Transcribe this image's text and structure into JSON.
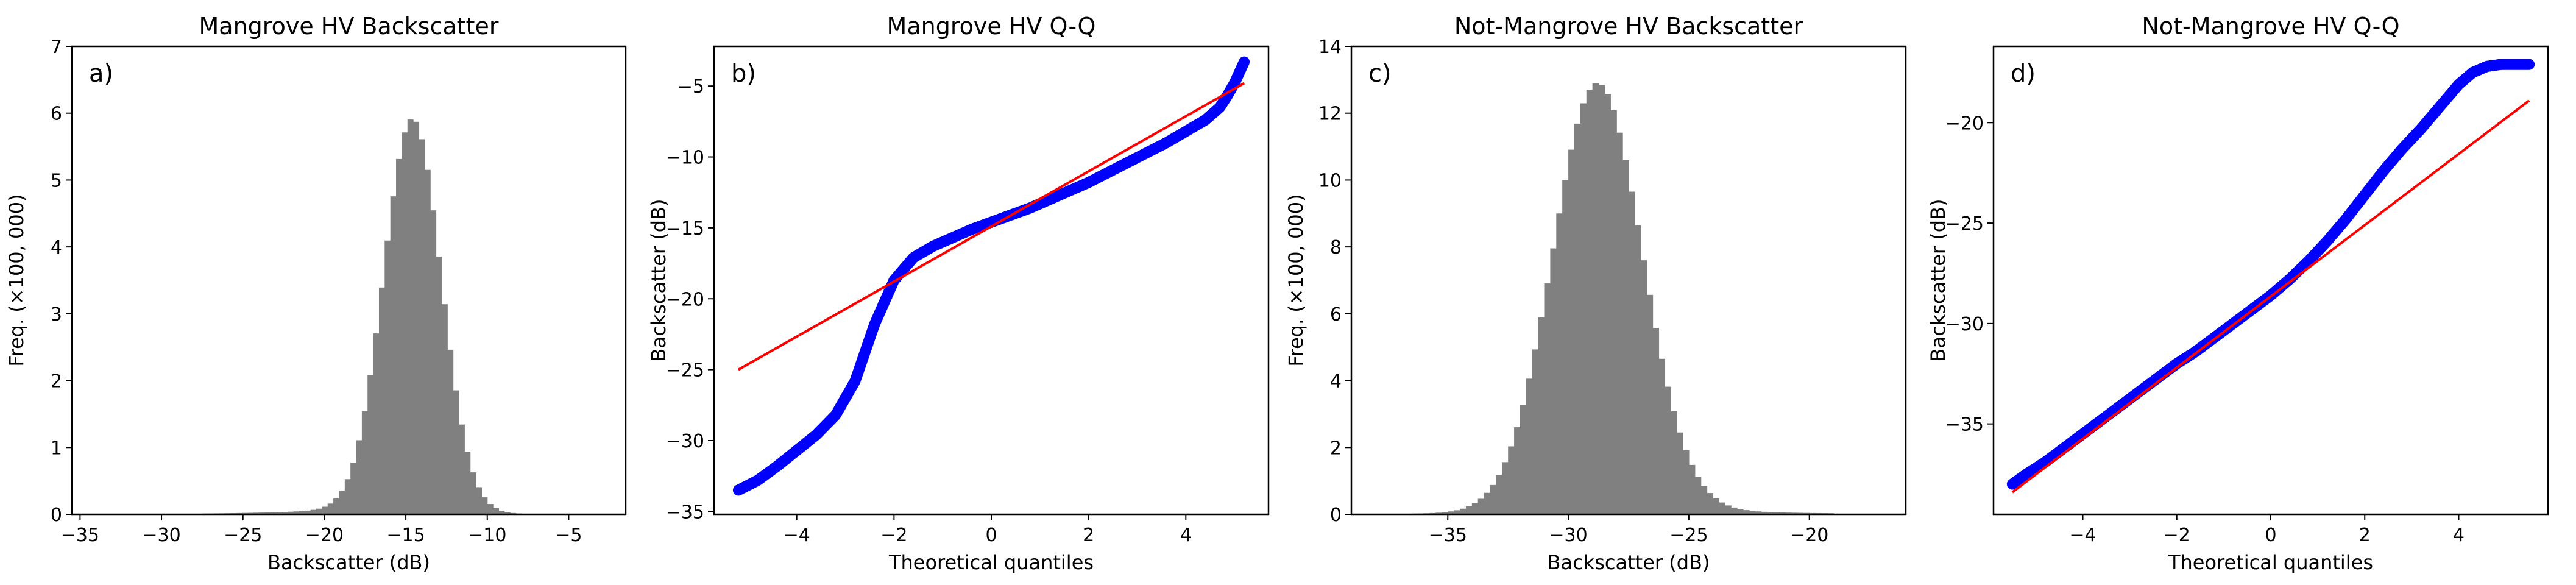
{
  "figure": {
    "background": "#ffffff"
  },
  "colors": {
    "bar": "#808080",
    "qq_points": "#0000ff",
    "qq_line": "#ff0000",
    "axes": "#000000"
  },
  "chart_data": [
    {
      "id": "a",
      "type": "bar",
      "panel_label": "a)",
      "title": "Mangrove HV Backscatter",
      "xlabel": "Backscatter (dB)",
      "ylabel": "Freq. (×100, 000)",
      "xlim": [
        -35.5,
        -1.5
      ],
      "ylim": [
        0,
        7
      ],
      "xticks": [
        -35,
        -30,
        -25,
        -20,
        -15,
        -10,
        -5
      ],
      "yticks": [
        0,
        1,
        2,
        3,
        4,
        5,
        6,
        7
      ],
      "histogram": {
        "mean": -14.6,
        "sd": 1.75,
        "peak": 5.92,
        "left_tail": 0.2,
        "right_tail": 0.04,
        "bin_width": 0.35,
        "x_min": -27.5,
        "x_max": -8.0
      }
    },
    {
      "id": "b",
      "type": "scatter",
      "panel_label": "b)",
      "title": "Mangrove HV Q-Q",
      "xlabel": "Theoretical quantiles",
      "ylabel": "Backscatter (dB)",
      "xlim": [
        -5.7,
        5.7
      ],
      "ylim": [
        -35.2,
        -2.2
      ],
      "xticks": [
        -4,
        -2,
        0,
        2,
        4
      ],
      "yticks": [
        -35,
        -30,
        -25,
        -20,
        -15,
        -10,
        -5
      ],
      "points": {
        "x": [
          -5.2,
          -4.8,
          -4.4,
          -4.0,
          -3.6,
          -3.2,
          -2.8,
          -2.4,
          -2.0,
          -1.6,
          -1.2,
          -0.8,
          -0.4,
          0.0,
          0.4,
          0.8,
          1.2,
          1.6,
          2.0,
          2.4,
          2.8,
          3.2,
          3.6,
          4.0,
          4.4,
          4.7,
          4.85,
          5.0,
          5.2
        ],
        "y": [
          -33.5,
          -32.8,
          -31.8,
          -30.7,
          -29.6,
          -28.2,
          -25.8,
          -21.8,
          -18.7,
          -17.1,
          -16.3,
          -15.7,
          -15.1,
          -14.6,
          -14.1,
          -13.6,
          -13.0,
          -12.4,
          -11.8,
          -11.1,
          -10.4,
          -9.7,
          -9.0,
          -8.2,
          -7.4,
          -6.5,
          -5.7,
          -4.8,
          -3.3
        ]
      },
      "ref_line": {
        "x": [
          -5.2,
          5.2
        ],
        "y": [
          -25.0,
          -4.8
        ]
      }
    },
    {
      "id": "c",
      "type": "bar",
      "panel_label": "c)",
      "title": "Not-Mangrove HV Backscatter",
      "xlabel": "Backscatter (dB)",
      "ylabel": "Freq. (×100, 000)",
      "xlim": [
        -39,
        -16
      ],
      "ylim": [
        0,
        14
      ],
      "xticks": [
        -35,
        -30,
        -25,
        -20
      ],
      "yticks": [
        0,
        2,
        4,
        6,
        8,
        10,
        12,
        14
      ],
      "histogram": {
        "mean": -28.8,
        "sd": 1.85,
        "peak": 12.9,
        "left_tail": 0.1,
        "right_tail": 0.35,
        "bin_width": 0.25,
        "x_min": -36.5,
        "x_max": -19.0
      }
    },
    {
      "id": "d",
      "type": "scatter",
      "panel_label": "d)",
      "title": "Not-Mangrove HV Q-Q",
      "xlabel": "Theoretical quantiles",
      "ylabel": "Backscatter (dB)",
      "xlim": [
        -5.9,
        5.9
      ],
      "ylim": [
        -39.5,
        -16.2
      ],
      "xticks": [
        -4,
        -2,
        0,
        2,
        4
      ],
      "yticks": [
        -35,
        -30,
        -25,
        -20
      ],
      "points": {
        "x": [
          -5.5,
          -5.2,
          -4.8,
          -4.4,
          -4.0,
          -3.6,
          -3.2,
          -2.8,
          -2.4,
          -2.0,
          -1.6,
          -1.2,
          -0.8,
          -0.4,
          0.0,
          0.4,
          0.8,
          1.2,
          1.6,
          2.0,
          2.4,
          2.8,
          3.2,
          3.6,
          4.0,
          4.3,
          4.6,
          4.9,
          5.2,
          5.5
        ],
        "y": [
          -38.0,
          -37.5,
          -36.9,
          -36.2,
          -35.5,
          -34.8,
          -34.1,
          -33.4,
          -32.7,
          -32.0,
          -31.4,
          -30.7,
          -30.0,
          -29.3,
          -28.6,
          -27.8,
          -26.9,
          -25.9,
          -24.8,
          -23.6,
          -22.4,
          -21.3,
          -20.3,
          -19.2,
          -18.1,
          -17.5,
          -17.2,
          -17.1,
          -17.1,
          -17.1
        ]
      },
      "ref_line": {
        "x": [
          -5.5,
          5.5
        ],
        "y": [
          -38.4,
          -18.9
        ]
      }
    }
  ]
}
